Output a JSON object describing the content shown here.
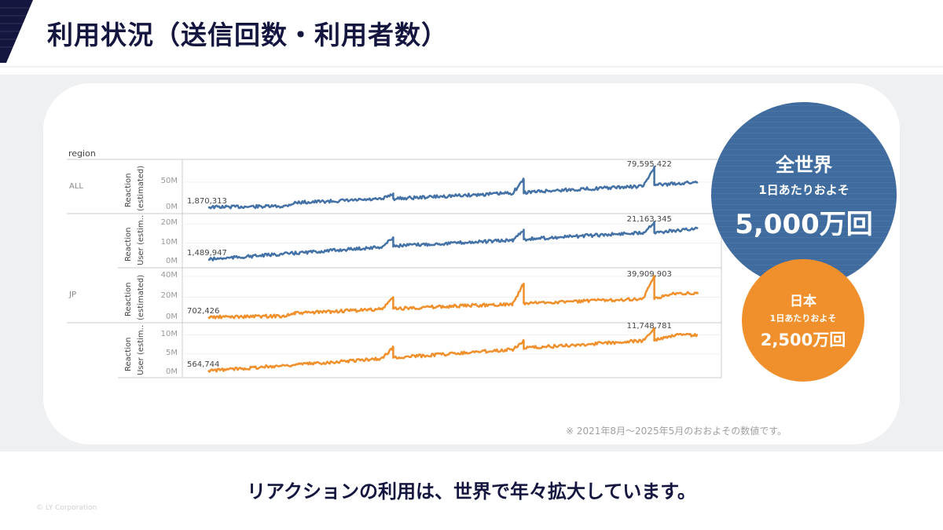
{
  "header": {
    "title": "利用状況（送信回数・利用者数）"
  },
  "colors": {
    "navy": "#14163f",
    "all_series": "#4472a6",
    "jp_series": "#f0902c",
    "blue_circle": "#3f6b9e",
    "orange_circle": "#f0902c"
  },
  "chart_data": {
    "type": "line",
    "row_header": "region",
    "x_range": [
      "2021-08",
      "2025-05"
    ],
    "grid": true,
    "panels": [
      {
        "region": "ALL",
        "axis_title": [
          "Reaction",
          "(estimated)"
        ],
        "ticks": [
          "50M",
          "0M"
        ],
        "tick_values": [
          50000000,
          0
        ],
        "ylim": [
          0,
          92000000
        ],
        "color": "#4472a6",
        "start_label": "1,870,313",
        "peak_label": "79,595,422",
        "points": [
          [
            "2021-08",
            1870313
          ],
          [
            "2022-03",
            3500000
          ],
          [
            "2022-04",
            10500000
          ],
          [
            "2022-12",
            17000000
          ],
          [
            "2023-01",
            28000000
          ],
          [
            "2023-01",
            18000000
          ],
          [
            "2023-12",
            29000000
          ],
          [
            "2024-01",
            55000000
          ],
          [
            "2024-01",
            30000000
          ],
          [
            "2024-04",
            34000000
          ],
          [
            "2024-12",
            42000000
          ],
          [
            "2025-01",
            79595422
          ],
          [
            "2025-01",
            44000000
          ],
          [
            "2025-05",
            50000000
          ]
        ]
      },
      {
        "region": "ALL",
        "axis_title": [
          "Reaction",
          "User (estim.."
        ],
        "ticks": [
          "20M",
          "10M",
          "0M"
        ],
        "tick_values": [
          20000000,
          10000000,
          0
        ],
        "ylim": [
          0,
          25000000
        ],
        "color": "#4472a6",
        "start_label": "1,489,947",
        "peak_label": "21,163,345",
        "points": [
          [
            "2021-08",
            1489947
          ],
          [
            "2022-12",
            8000000
          ],
          [
            "2023-01",
            13000000
          ],
          [
            "2023-01",
            8500000
          ],
          [
            "2023-12",
            11500000
          ],
          [
            "2024-01",
            17000000
          ],
          [
            "2024-01",
            12000000
          ],
          [
            "2024-12",
            15500000
          ],
          [
            "2025-01",
            21163345
          ],
          [
            "2025-01",
            15500000
          ],
          [
            "2025-05",
            17500000
          ]
        ]
      },
      {
        "region": "JP",
        "axis_title": [
          "Reaction",
          "(estimated)"
        ],
        "ticks": [
          "40M",
          "20M",
          "0M"
        ],
        "tick_values": [
          40000000,
          20000000,
          0
        ],
        "ylim": [
          0,
          47500000
        ],
        "color": "#f0902c",
        "start_label": "702,426",
        "peak_label": "39,909,903",
        "points": [
          [
            "2021-08",
            702426
          ],
          [
            "2022-03",
            2000000
          ],
          [
            "2022-04",
            4500000
          ],
          [
            "2022-12",
            8500000
          ],
          [
            "2023-01",
            20000000
          ],
          [
            "2023-01",
            9000000
          ],
          [
            "2023-12",
            13500000
          ],
          [
            "2024-01",
            33000000
          ],
          [
            "2024-01",
            14000000
          ],
          [
            "2024-12",
            18500000
          ],
          [
            "2025-01",
            39909903
          ],
          [
            "2025-01",
            18500000
          ],
          [
            "2025-03",
            24000000
          ],
          [
            "2025-05",
            23000000
          ]
        ]
      },
      {
        "region": "JP",
        "axis_title": [
          "Reaction",
          "User (estim.."
        ],
        "ticks": [
          "10M",
          "5M",
          "0M"
        ],
        "tick_values": [
          10000000,
          5000000,
          0
        ],
        "ylim": [
          0,
          13000000
        ],
        "color": "#f0902c",
        "start_label": "564,744",
        "peak_label": "11,748,781",
        "points": [
          [
            "2021-08",
            564744
          ],
          [
            "2022-12",
            3800000
          ],
          [
            "2023-01",
            6800000
          ],
          [
            "2023-01",
            4000000
          ],
          [
            "2023-12",
            6200000
          ],
          [
            "2024-01",
            8500000
          ],
          [
            "2024-01",
            6500000
          ],
          [
            "2024-12",
            8500000
          ],
          [
            "2025-01",
            11748781
          ],
          [
            "2025-01",
            8700000
          ],
          [
            "2025-03",
            10000000
          ],
          [
            "2025-05",
            10000000
          ]
        ]
      }
    ]
  },
  "callouts": {
    "world": {
      "title": "全世界",
      "subtitle": "1日あたりおよそ",
      "value": "5,000万回"
    },
    "japan": {
      "title": "日本",
      "subtitle": "1日あたりおよそ",
      "value": "2,500万回"
    }
  },
  "note": "※ 2021年8月〜2025年5月のおおよその数値です。",
  "message": "リアクションの利用は、世界で年々拡大しています。",
  "copyright": "© LY Corporation"
}
